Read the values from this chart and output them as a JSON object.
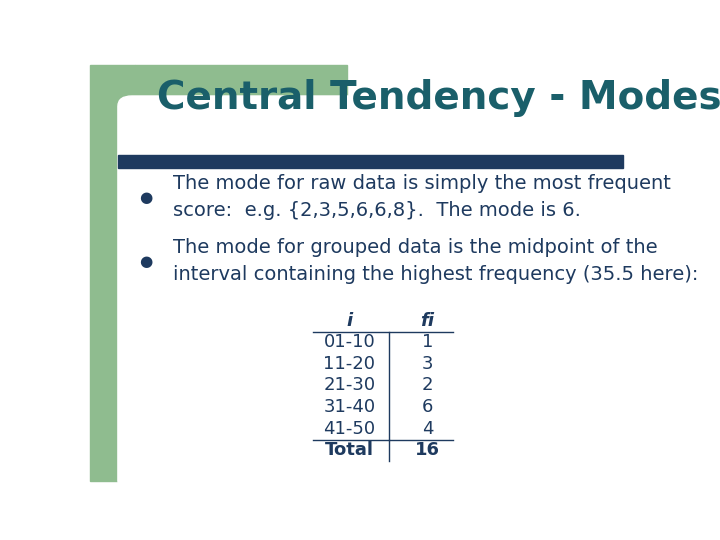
{
  "title": "Central Tendency - Modes",
  "title_color": "#1a5f6a",
  "title_fontsize": 28,
  "bg_color": "#ffffff",
  "left_bar_color": "#8fbc8f",
  "divider_color": "#1e3a5f",
  "bullet_color": "#1e3a5f",
  "text_color": "#1e3a5f",
  "bullet1": "The mode for raw data is simply the most frequent\nscore:  e.g. {2,3,5,6,6,8}.  The mode is 6.",
  "bullet2": "The mode for grouped data is the midpoint of the\ninterval containing the highest frequency (35.5 here):",
  "table_headers": [
    "i",
    "fi"
  ],
  "table_rows": [
    [
      "01-10",
      "1"
    ],
    [
      "11-20",
      "3"
    ],
    [
      "21-30",
      "2"
    ],
    [
      "31-40",
      "6"
    ],
    [
      "41-50",
      "4"
    ],
    [
      "Total",
      "16"
    ]
  ],
  "text_fontsize": 14,
  "table_fontsize": 13
}
